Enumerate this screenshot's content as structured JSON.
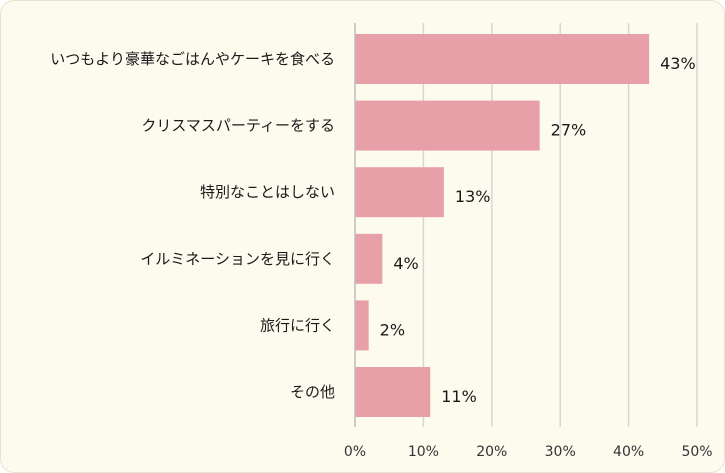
{
  "chart_data": {
    "type": "bar",
    "orientation": "horizontal",
    "categories": [
      "いつもより豪華なごはんやケーキを食べる",
      "クリスマスパーティーをする",
      "特別なことはしない",
      "イルミネーションを見に行く",
      "旅行に行く",
      "その他"
    ],
    "values": [
      43,
      27,
      13,
      4,
      2,
      11
    ],
    "value_labels": [
      "43%",
      "27%",
      "13%",
      "4%",
      "2%",
      "11%"
    ],
    "x_ticks": [
      "0%",
      "10%",
      "20%",
      "30%",
      "40%",
      "50%"
    ],
    "xlim": [
      0,
      50
    ],
    "grid": true,
    "bar_color": "#e8a0a8",
    "background_color": "#fdfbee"
  }
}
